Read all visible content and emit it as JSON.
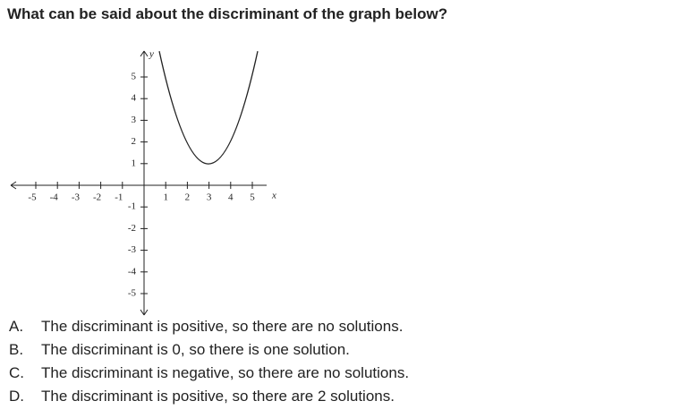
{
  "question": "What can be said about the discriminant of the graph below?",
  "graph": {
    "x_label": "x",
    "y_label": "y",
    "xticks": [
      -5,
      -4,
      -3,
      -2,
      -1,
      1,
      2,
      3,
      4,
      5
    ],
    "yticks": [
      -5,
      -4,
      -3,
      -2,
      -1,
      1,
      2,
      3,
      4,
      5
    ]
  },
  "choices": [
    {
      "letter": "A.",
      "text": "The discriminant is positive, so there are no solutions."
    },
    {
      "letter": "B.",
      "text": "The discriminant is 0, so there is one solution."
    },
    {
      "letter": "C.",
      "text": "The discriminant is negative, so there are no solutions."
    },
    {
      "letter": "D.",
      "text": "The discriminant is positive, so there are 2 solutions."
    }
  ]
}
